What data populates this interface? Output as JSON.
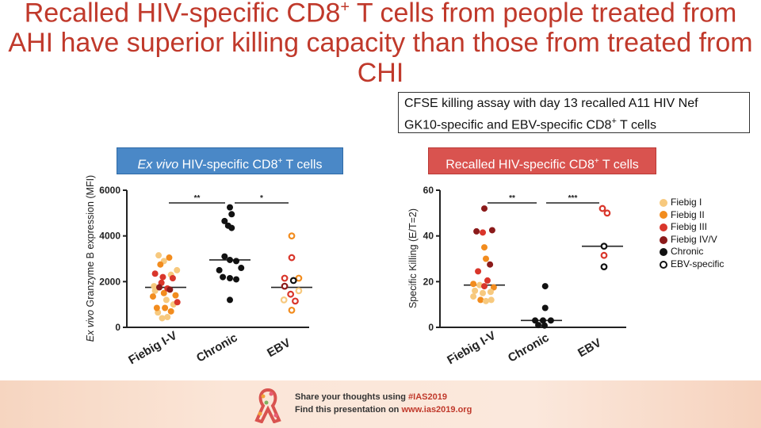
{
  "title": {
    "main": "Recalled HIV-specific CD8",
    "sup": "+",
    "rest": " T cells from people treated from AHI have superior killing capacity than those from treated from CHI"
  },
  "assay_box": {
    "line1": "CFSE killing assay with day 13 recalled A11 HIV Nef",
    "line2_pre": "GK10-specific and EBV-specific CD8",
    "line2_sup": "+",
    "line2_post": " T cells"
  },
  "panel_labels": {
    "exvivo_italic": "Ex vivo",
    "exvivo_rest": " HIV-specific CD8",
    "exvivo_sup": "+",
    "exvivo_post": " T cells",
    "recalled_pre": "Recalled HIV-specific CD8",
    "recalled_sup": "+",
    "recalled_post": " T cells"
  },
  "legend": [
    {
      "label": "Fiebig I",
      "color": "#f7c97e",
      "hollow": false
    },
    {
      "label": "Fiebig II",
      "color": "#f28c1e",
      "hollow": false
    },
    {
      "label": "Fiebig III",
      "color": "#d9362b",
      "hollow": false
    },
    {
      "label": "Fiebig IV/V",
      "color": "#8b1a1a",
      "hollow": false
    },
    {
      "label": "Chronic",
      "color": "#111111",
      "hollow": false
    },
    {
      "label": "EBV-specific",
      "color": "#111111",
      "hollow": true
    }
  ],
  "chart_data": [
    {
      "type": "scatter",
      "ylabel_italic": "Ex vivo",
      "ylabel_rest": " Granzyme B expression (MFI)",
      "ylim": [
        0,
        6000
      ],
      "yticks": [
        "0",
        "2000",
        "4000",
        "6000"
      ],
      "categories": [
        "Fiebig I-V",
        "Chronic",
        "EBV"
      ],
      "medians": [
        1750,
        2950,
        1750
      ],
      "significance": [
        {
          "from": 0,
          "to": 1,
          "label": "**"
        },
        {
          "from": 1,
          "to": 2,
          "label": "*"
        }
      ],
      "points": [
        {
          "cat": 0,
          "jitter": -0.33,
          "value": 1800,
          "color": "#f7c97e",
          "hollow": false
        },
        {
          "cat": 0,
          "jitter": -0.2,
          "value": 3150,
          "color": "#f7c97e",
          "hollow": false
        },
        {
          "cat": 0,
          "jitter": -0.05,
          "value": 2900,
          "color": "#f7c97e",
          "hollow": false
        },
        {
          "cat": 0,
          "jitter": 0.15,
          "value": 2300,
          "color": "#f7c97e",
          "hollow": false
        },
        {
          "cat": 0,
          "jitter": 0.32,
          "value": 2500,
          "color": "#f7c97e",
          "hollow": false
        },
        {
          "cat": 0,
          "jitter": -0.3,
          "value": 1600,
          "color": "#f7c97e",
          "hollow": false
        },
        {
          "cat": 0,
          "jitter": 0.02,
          "value": 1200,
          "color": "#f7c97e",
          "hollow": false
        },
        {
          "cat": 0,
          "jitter": 0.22,
          "value": 1000,
          "color": "#f7c97e",
          "hollow": false
        },
        {
          "cat": 0,
          "jitter": -0.22,
          "value": 650,
          "color": "#f7c97e",
          "hollow": false
        },
        {
          "cat": 0,
          "jitter": 0.05,
          "value": 450,
          "color": "#f7c97e",
          "hollow": false
        },
        {
          "cat": 0,
          "jitter": -0.1,
          "value": 400,
          "color": "#f7c97e",
          "hollow": false
        },
        {
          "cat": 0,
          "jitter": -0.15,
          "value": 2750,
          "color": "#f28c1e",
          "hollow": false
        },
        {
          "cat": 0,
          "jitter": 0.1,
          "value": 3050,
          "color": "#f28c1e",
          "hollow": false
        },
        {
          "cat": 0,
          "jitter": -0.36,
          "value": 1350,
          "color": "#f28c1e",
          "hollow": false
        },
        {
          "cat": 0,
          "jitter": -0.05,
          "value": 1500,
          "color": "#f28c1e",
          "hollow": false
        },
        {
          "cat": 0,
          "jitter": 0.28,
          "value": 1400,
          "color": "#f28c1e",
          "hollow": false
        },
        {
          "cat": 0,
          "jitter": -0.25,
          "value": 850,
          "color": "#f28c1e",
          "hollow": false
        },
        {
          "cat": 0,
          "jitter": 0.15,
          "value": 700,
          "color": "#f28c1e",
          "hollow": false
        },
        {
          "cat": 0,
          "jitter": -0.02,
          "value": 850,
          "color": "#f28c1e",
          "hollow": false
        },
        {
          "cat": 0,
          "jitter": -0.08,
          "value": 2200,
          "color": "#d9362b",
          "hollow": false
        },
        {
          "cat": 0,
          "jitter": 0.2,
          "value": 2150,
          "color": "#d9362b",
          "hollow": false
        },
        {
          "cat": 0,
          "jitter": -0.3,
          "value": 2350,
          "color": "#d9362b",
          "hollow": false
        },
        {
          "cat": 0,
          "jitter": 0.05,
          "value": 1700,
          "color": "#d9362b",
          "hollow": false
        },
        {
          "cat": 0,
          "jitter": 0.33,
          "value": 1100,
          "color": "#d9362b",
          "hollow": false
        },
        {
          "cat": 0,
          "jitter": -0.12,
          "value": 1950,
          "color": "#d9362b",
          "hollow": false
        },
        {
          "cat": 0,
          "jitter": 0.12,
          "value": 1650,
          "color": "#8b1a1a",
          "hollow": false
        },
        {
          "cat": 0,
          "jitter": -0.18,
          "value": 1750,
          "color": "#8b1a1a",
          "hollow": false
        },
        {
          "cat": 1,
          "jitter": 0.0,
          "value": 5250,
          "color": "#111111",
          "hollow": false
        },
        {
          "cat": 1,
          "jitter": 0.05,
          "value": 4950,
          "color": "#111111",
          "hollow": false
        },
        {
          "cat": 1,
          "jitter": -0.15,
          "value": 4650,
          "color": "#111111",
          "hollow": false
        },
        {
          "cat": 1,
          "jitter": 0.05,
          "value": 4350,
          "color": "#111111",
          "hollow": false
        },
        {
          "cat": 1,
          "jitter": -0.05,
          "value": 4450,
          "color": "#111111",
          "hollow": false
        },
        {
          "cat": 1,
          "jitter": -0.15,
          "value": 3100,
          "color": "#111111",
          "hollow": false
        },
        {
          "cat": 1,
          "jitter": 0.0,
          "value": 2950,
          "color": "#111111",
          "hollow": false
        },
        {
          "cat": 1,
          "jitter": 0.18,
          "value": 2900,
          "color": "#111111",
          "hollow": false
        },
        {
          "cat": 1,
          "jitter": -0.3,
          "value": 2500,
          "color": "#111111",
          "hollow": false
        },
        {
          "cat": 1,
          "jitter": 0.32,
          "value": 2600,
          "color": "#111111",
          "hollow": false
        },
        {
          "cat": 1,
          "jitter": -0.2,
          "value": 2200,
          "color": "#111111",
          "hollow": false
        },
        {
          "cat": 1,
          "jitter": 0.0,
          "value": 2150,
          "color": "#111111",
          "hollow": false
        },
        {
          "cat": 1,
          "jitter": 0.18,
          "value": 2100,
          "color": "#111111",
          "hollow": false
        },
        {
          "cat": 1,
          "jitter": 0.0,
          "value": 1200,
          "color": "#111111",
          "hollow": false
        },
        {
          "cat": 2,
          "jitter": 0.0,
          "value": 4000,
          "color": "#f28c1e",
          "hollow": true
        },
        {
          "cat": 2,
          "jitter": 0.0,
          "value": 3050,
          "color": "#d9362b",
          "hollow": true
        },
        {
          "cat": 2,
          "jitter": -0.2,
          "value": 2150,
          "color": "#d9362b",
          "hollow": true
        },
        {
          "cat": 2,
          "jitter": 0.2,
          "value": 2150,
          "color": "#f28c1e",
          "hollow": true
        },
        {
          "cat": 2,
          "jitter": 0.05,
          "value": 2050,
          "color": "#111111",
          "hollow": true
        },
        {
          "cat": 2,
          "jitter": -0.2,
          "value": 1800,
          "color": "#8b1a1a",
          "hollow": true
        },
        {
          "cat": 2,
          "jitter": 0.2,
          "value": 1600,
          "color": "#f7c97e",
          "hollow": true
        },
        {
          "cat": 2,
          "jitter": -0.03,
          "value": 1450,
          "color": "#d9362b",
          "hollow": true
        },
        {
          "cat": 2,
          "jitter": 0.1,
          "value": 1150,
          "color": "#d9362b",
          "hollow": true
        },
        {
          "cat": 2,
          "jitter": -0.22,
          "value": 1200,
          "color": "#f7c97e",
          "hollow": true
        },
        {
          "cat": 2,
          "jitter": 0.0,
          "value": 750,
          "color": "#f28c1e",
          "hollow": true
        }
      ]
    },
    {
      "type": "scatter",
      "ylabel": "Specific Killing (E/T=2)",
      "ylim": [
        0,
        60
      ],
      "yticks": [
        "0",
        "20",
        "40",
        "60"
      ],
      "categories": [
        "Fiebig I-V",
        "Chronic",
        "EBV"
      ],
      "medians": [
        18.5,
        3,
        35.5
      ],
      "significance": [
        {
          "from": 0,
          "to": 1,
          "label": "**"
        },
        {
          "from": 1,
          "to": 2,
          "label": "***"
        }
      ],
      "points": [
        {
          "cat": 0,
          "jitter": 0.0,
          "value": 52,
          "color": "#8b1a1a",
          "hollow": false
        },
        {
          "cat": 0,
          "jitter": -0.25,
          "value": 42,
          "color": "#8b1a1a",
          "hollow": false
        },
        {
          "cat": 0,
          "jitter": -0.05,
          "value": 41.5,
          "color": "#d9362b",
          "hollow": false
        },
        {
          "cat": 0,
          "jitter": 0.25,
          "value": 42.5,
          "color": "#8b1a1a",
          "hollow": false
        },
        {
          "cat": 0,
          "jitter": 0.0,
          "value": 35,
          "color": "#f28c1e",
          "hollow": false
        },
        {
          "cat": 0,
          "jitter": 0.05,
          "value": 30,
          "color": "#f28c1e",
          "hollow": false
        },
        {
          "cat": 0,
          "jitter": 0.18,
          "value": 27.5,
          "color": "#8b1a1a",
          "hollow": false
        },
        {
          "cat": 0,
          "jitter": -0.2,
          "value": 24.5,
          "color": "#d9362b",
          "hollow": false
        },
        {
          "cat": 0,
          "jitter": 0.1,
          "value": 20.5,
          "color": "#d9362b",
          "hollow": false
        },
        {
          "cat": 0,
          "jitter": -0.35,
          "value": 19,
          "color": "#f28c1e",
          "hollow": false
        },
        {
          "cat": 0,
          "jitter": -0.15,
          "value": 18.5,
          "color": "#f7c97e",
          "hollow": false
        },
        {
          "cat": 0,
          "jitter": 0.0,
          "value": 18,
          "color": "#d9362b",
          "hollow": false
        },
        {
          "cat": 0,
          "jitter": 0.3,
          "value": 17.5,
          "color": "#f28c1e",
          "hollow": false
        },
        {
          "cat": 0,
          "jitter": -0.3,
          "value": 16,
          "color": "#f7c97e",
          "hollow": false
        },
        {
          "cat": 0,
          "jitter": -0.05,
          "value": 15,
          "color": "#f7c97e",
          "hollow": false
        },
        {
          "cat": 0,
          "jitter": 0.2,
          "value": 15.5,
          "color": "#f7c97e",
          "hollow": false
        },
        {
          "cat": 0,
          "jitter": -0.35,
          "value": 13.5,
          "color": "#f7c97e",
          "hollow": false
        },
        {
          "cat": 0,
          "jitter": -0.12,
          "value": 12,
          "color": "#f28c1e",
          "hollow": false
        },
        {
          "cat": 0,
          "jitter": 0.05,
          "value": 11.5,
          "color": "#f7c97e",
          "hollow": false
        },
        {
          "cat": 0,
          "jitter": 0.22,
          "value": 12,
          "color": "#f7c97e",
          "hollow": false
        },
        {
          "cat": 1,
          "jitter": 0.12,
          "value": 18,
          "color": "#111111",
          "hollow": false
        },
        {
          "cat": 1,
          "jitter": 0.12,
          "value": 8.5,
          "color": "#111111",
          "hollow": false
        },
        {
          "cat": 1,
          "jitter": -0.2,
          "value": 3,
          "color": "#111111",
          "hollow": false
        },
        {
          "cat": 1,
          "jitter": 0.05,
          "value": 3,
          "color": "#111111",
          "hollow": false
        },
        {
          "cat": 1,
          "jitter": 0.3,
          "value": 3,
          "color": "#111111",
          "hollow": false
        },
        {
          "cat": 1,
          "jitter": -0.1,
          "value": 1,
          "color": "#111111",
          "hollow": false
        },
        {
          "cat": 1,
          "jitter": 0.1,
          "value": 0.8,
          "color": "#111111",
          "hollow": false
        },
        {
          "cat": 2,
          "jitter": 0.0,
          "value": 52,
          "color": "#d9362b",
          "hollow": true
        },
        {
          "cat": 2,
          "jitter": 0.15,
          "value": 50,
          "color": "#d9362b",
          "hollow": true
        },
        {
          "cat": 2,
          "jitter": 0.05,
          "value": 35.5,
          "color": "#111111",
          "hollow": true
        },
        {
          "cat": 2,
          "jitter": 0.05,
          "value": 31.5,
          "color": "#d9362b",
          "hollow": true
        },
        {
          "cat": 2,
          "jitter": 0.05,
          "value": 26.5,
          "color": "#111111",
          "hollow": true
        }
      ]
    }
  ],
  "footer": {
    "line1_pre": "Share your thoughts using ",
    "line1_tag": "#IAS2019",
    "line2_pre": "Find this presentation on ",
    "line2_url": "www.ias2019.org"
  }
}
